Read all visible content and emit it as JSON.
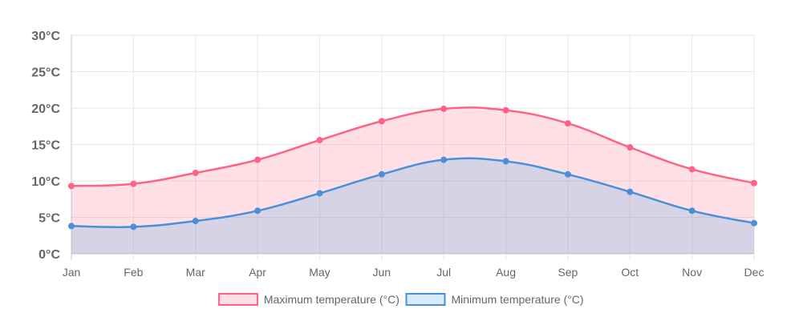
{
  "chart_data": {
    "type": "area",
    "categories": [
      "Jan",
      "Feb",
      "Mar",
      "Apr",
      "May",
      "Jun",
      "Jul",
      "Aug",
      "Sep",
      "Oct",
      "Nov",
      "Dec"
    ],
    "series": [
      {
        "name": "Maximum temperature (°C)",
        "values": [
          9.3,
          9.6,
          11.1,
          12.9,
          15.6,
          18.2,
          19.9,
          19.7,
          17.9,
          14.6,
          11.6,
          9.7
        ],
        "color": "#ff6384",
        "fill": "rgba(255,99,132,0.2)"
      },
      {
        "name": "Minimum temperature (°C)",
        "values": [
          3.8,
          3.7,
          4.5,
          5.9,
          8.3,
          10.9,
          12.9,
          12.7,
          10.9,
          8.5,
          5.9,
          4.2
        ],
        "color": "#4a90d9",
        "fill": "rgba(54,162,235,0.2)"
      }
    ],
    "y_ticks": [
      "0°C",
      "5°C",
      "10°C",
      "15°C",
      "20°C",
      "25°C",
      "30°C"
    ],
    "ylim": [
      0,
      30
    ],
    "grid": true,
    "legend_position": "bottom"
  }
}
